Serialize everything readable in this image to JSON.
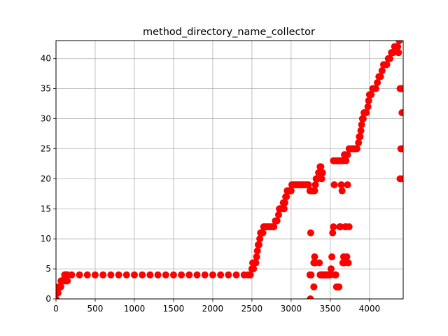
{
  "chart_data": {
    "type": "scatter",
    "title": "method_directory_name_collector",
    "xlabel": "",
    "ylabel": "",
    "xlim": [
      0,
      4430
    ],
    "ylim": [
      0,
      43
    ],
    "x_ticks": [
      0,
      500,
      1000,
      1500,
      2000,
      2500,
      3000,
      3500,
      4000
    ],
    "y_ticks": [
      0,
      5,
      10,
      15,
      20,
      25,
      30,
      35,
      40
    ],
    "x_tick_labels": [
      "0",
      "500",
      "1000",
      "1500",
      "2000",
      "2500",
      "3000",
      "3500",
      "4000"
    ],
    "y_tick_labels": [
      "0",
      "5",
      "10",
      "15",
      "20",
      "25",
      "30",
      "35",
      "40"
    ],
    "grid": true,
    "legend": "none",
    "marker_color": "#ff0000",
    "series": [
      {
        "points": [
          [
            0,
            0
          ],
          [
            5,
            1
          ],
          [
            10,
            1
          ],
          [
            15,
            1
          ],
          [
            20,
            1
          ],
          [
            25,
            1
          ],
          [
            30,
            2
          ],
          [
            35,
            2
          ],
          [
            40,
            2
          ],
          [
            45,
            2
          ],
          [
            50,
            2
          ],
          [
            55,
            2
          ],
          [
            60,
            2
          ],
          [
            65,
            3
          ],
          [
            70,
            3
          ],
          [
            75,
            3
          ],
          [
            80,
            3
          ],
          [
            85,
            3
          ],
          [
            90,
            3
          ],
          [
            95,
            3
          ],
          [
            100,
            3
          ],
          [
            105,
            3
          ],
          [
            110,
            4
          ],
          [
            115,
            4
          ],
          [
            120,
            4
          ],
          [
            125,
            4
          ],
          [
            130,
            4
          ],
          [
            135,
            4
          ],
          [
            140,
            3
          ],
          [
            145,
            3
          ],
          [
            150,
            4
          ],
          [
            200,
            4
          ],
          [
            300,
            4
          ],
          [
            400,
            4
          ],
          [
            500,
            4
          ],
          [
            600,
            4
          ],
          [
            700,
            4
          ],
          [
            800,
            4
          ],
          [
            900,
            4
          ],
          [
            1000,
            4
          ],
          [
            1100,
            4
          ],
          [
            1200,
            4
          ],
          [
            1300,
            4
          ],
          [
            1400,
            4
          ],
          [
            1500,
            4
          ],
          [
            1600,
            4
          ],
          [
            1700,
            4
          ],
          [
            1800,
            4
          ],
          [
            1900,
            4
          ],
          [
            2000,
            4
          ],
          [
            2100,
            4
          ],
          [
            2200,
            4
          ],
          [
            2300,
            4
          ],
          [
            2400,
            4
          ],
          [
            2450,
            4
          ],
          [
            2480,
            4
          ],
          [
            2500,
            5
          ],
          [
            2510,
            6
          ],
          [
            2520,
            5
          ],
          [
            2530,
            6
          ],
          [
            2540,
            6
          ],
          [
            2550,
            6
          ],
          [
            2560,
            7
          ],
          [
            2570,
            8
          ],
          [
            2580,
            9
          ],
          [
            2590,
            9
          ],
          [
            2600,
            10
          ],
          [
            2610,
            11
          ],
          [
            2620,
            11
          ],
          [
            2630,
            11
          ],
          [
            2640,
            11
          ],
          [
            2650,
            12
          ],
          [
            2660,
            12
          ],
          [
            2680,
            12
          ],
          [
            2700,
            12
          ],
          [
            2720,
            12
          ],
          [
            2740,
            12
          ],
          [
            2760,
            12
          ],
          [
            2780,
            12
          ],
          [
            2800,
            13
          ],
          [
            2820,
            13
          ],
          [
            2840,
            14
          ],
          [
            2850,
            15
          ],
          [
            2860,
            15
          ],
          [
            2880,
            15
          ],
          [
            2900,
            16
          ],
          [
            2910,
            15
          ],
          [
            2920,
            16
          ],
          [
            2930,
            17
          ],
          [
            2940,
            17
          ],
          [
            2950,
            18
          ],
          [
            2960,
            18
          ],
          [
            2970,
            18
          ],
          [
            2980,
            18
          ],
          [
            3000,
            18
          ],
          [
            3010,
            19
          ],
          [
            3020,
            19
          ],
          [
            3040,
            19
          ],
          [
            3060,
            19
          ],
          [
            3080,
            19
          ],
          [
            3100,
            19
          ],
          [
            3120,
            19
          ],
          [
            3140,
            19
          ],
          [
            3160,
            19
          ],
          [
            3180,
            19
          ],
          [
            3200,
            19
          ],
          [
            3220,
            19
          ],
          [
            3240,
            18
          ],
          [
            3260,
            18
          ],
          [
            3280,
            18
          ],
          [
            3300,
            18
          ],
          [
            3310,
            19
          ],
          [
            3320,
            20
          ],
          [
            3330,
            20
          ],
          [
            3340,
            20
          ],
          [
            3350,
            21
          ],
          [
            3360,
            21
          ],
          [
            3370,
            22
          ],
          [
            3380,
            22
          ],
          [
            3390,
            20
          ],
          [
            3400,
            21
          ],
          [
            3240,
            4
          ],
          [
            3245,
            0
          ],
          [
            3250,
            11
          ],
          [
            3255,
            4
          ],
          [
            3290,
            2
          ],
          [
            3290,
            6
          ],
          [
            3300,
            7
          ],
          [
            3310,
            6
          ],
          [
            3360,
            6
          ],
          [
            3370,
            4
          ],
          [
            3380,
            4
          ],
          [
            3390,
            4
          ],
          [
            3400,
            4
          ],
          [
            3410,
            4
          ],
          [
            3420,
            4
          ],
          [
            3430,
            4
          ],
          [
            3440,
            4
          ],
          [
            3450,
            4
          ],
          [
            3460,
            4
          ],
          [
            3470,
            4
          ],
          [
            3480,
            4
          ],
          [
            3490,
            4
          ],
          [
            3500,
            4
          ],
          [
            3510,
            5
          ],
          [
            3520,
            7
          ],
          [
            3530,
            11
          ],
          [
            3540,
            12
          ],
          [
            3550,
            19
          ],
          [
            3560,
            4
          ],
          [
            3570,
            4
          ],
          [
            3580,
            2
          ],
          [
            3590,
            2
          ],
          [
            3600,
            2
          ],
          [
            3610,
            2
          ],
          [
            3620,
            12
          ],
          [
            3630,
            12
          ],
          [
            3640,
            19
          ],
          [
            3650,
            18
          ],
          [
            3660,
            6
          ],
          [
            3670,
            7
          ],
          [
            3680,
            6
          ],
          [
            3690,
            12
          ],
          [
            3700,
            12
          ],
          [
            3710,
            7
          ],
          [
            3720,
            19
          ],
          [
            3730,
            6
          ],
          [
            3740,
            12
          ],
          [
            3540,
            23
          ],
          [
            3560,
            23
          ],
          [
            3580,
            23
          ],
          [
            3600,
            23
          ],
          [
            3620,
            23
          ],
          [
            3640,
            23
          ],
          [
            3660,
            23
          ],
          [
            3680,
            24
          ],
          [
            3700,
            23
          ],
          [
            3720,
            24
          ],
          [
            3740,
            25
          ],
          [
            3760,
            25
          ],
          [
            3780,
            25
          ],
          [
            3800,
            25
          ],
          [
            3820,
            25
          ],
          [
            3840,
            25
          ],
          [
            3860,
            26
          ],
          [
            3870,
            27
          ],
          [
            3880,
            27
          ],
          [
            3890,
            28
          ],
          [
            3900,
            29
          ],
          [
            3910,
            30
          ],
          [
            3920,
            30
          ],
          [
            3930,
            31
          ],
          [
            3940,
            31
          ],
          [
            3960,
            31
          ],
          [
            3980,
            32
          ],
          [
            3990,
            33
          ],
          [
            4000,
            34
          ],
          [
            4010,
            34
          ],
          [
            4020,
            34
          ],
          [
            4040,
            35
          ],
          [
            4060,
            35
          ],
          [
            4080,
            35
          ],
          [
            4100,
            36
          ],
          [
            4120,
            37
          ],
          [
            4140,
            37
          ],
          [
            4160,
            38
          ],
          [
            4180,
            39
          ],
          [
            4200,
            39
          ],
          [
            4220,
            39
          ],
          [
            4240,
            40
          ],
          [
            4260,
            40
          ],
          [
            4280,
            41
          ],
          [
            4300,
            41
          ],
          [
            4320,
            42
          ],
          [
            4340,
            42
          ],
          [
            4360,
            42
          ],
          [
            4370,
            41
          ],
          [
            4380,
            43
          ],
          [
            4390,
            35
          ],
          [
            4400,
            35
          ],
          [
            4410,
            35
          ],
          [
            4415,
            31
          ],
          [
            4420,
            25
          ],
          [
            4425,
            20
          ],
          [
            4390,
            20
          ],
          [
            4400,
            25
          ]
        ]
      }
    ]
  }
}
